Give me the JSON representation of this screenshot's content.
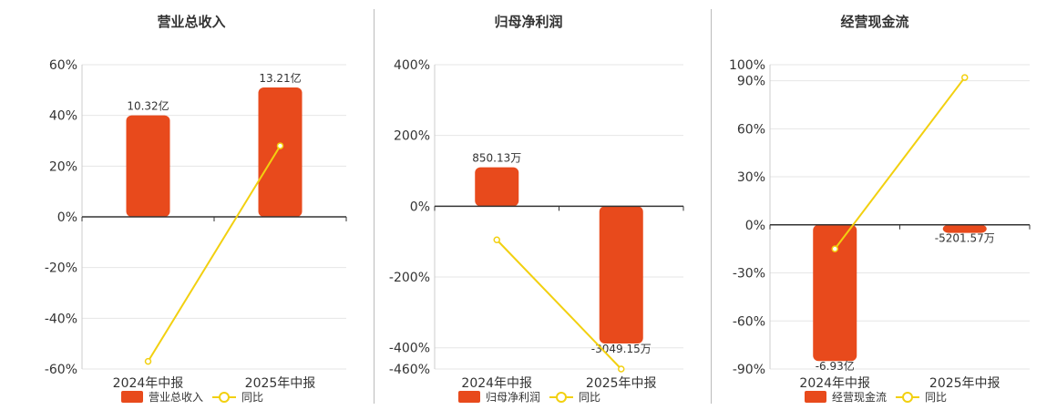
{
  "legend_yoy_label": "同比",
  "colors": {
    "bar": "#e84a1c",
    "line": "#f2d010",
    "axis": "#333333",
    "grid": "#e6e6e6",
    "text": "#333333"
  },
  "chart_data": [
    {
      "type": "bar",
      "title": "营业总收入",
      "categories": [
        "2024年中报",
        "2025年中报"
      ],
      "series": [
        {
          "name": "营业总收入",
          "type": "bar",
          "values": [
            null,
            null
          ],
          "labels": [
            "10.32亿",
            "13.21亿"
          ],
          "plot_pct": [
            40,
            51
          ]
        },
        {
          "name": "同比",
          "type": "line",
          "values": [
            -57,
            28
          ]
        }
      ],
      "ylim": [
        -60,
        60
      ],
      "yticks": [
        60,
        40,
        20,
        0,
        -20,
        -40,
        -60
      ],
      "ytick_labels": [
        "60%",
        "40%",
        "20%",
        "0%",
        "-20%",
        "-40%",
        "-60%"
      ],
      "grid": true,
      "legend": "bottom"
    },
    {
      "type": "bar",
      "title": "归母净利润",
      "categories": [
        "2024年中报",
        "2025年中报"
      ],
      "series": [
        {
          "name": "归母净利润",
          "type": "bar",
          "values": [
            null,
            null
          ],
          "labels": [
            "850.13万",
            "-3049.15万"
          ],
          "plot_pct": [
            110,
            -388
          ]
        },
        {
          "name": "同比",
          "type": "line",
          "values": [
            -95,
            -460
          ]
        }
      ],
      "ylim": [
        -460,
        400
      ],
      "yticks": [
        400,
        200,
        0,
        -200,
        -400,
        -460
      ],
      "ytick_labels": [
        "400%",
        "200%",
        "0%",
        "-200%",
        "-400%",
        "-460%"
      ],
      "grid": true,
      "legend": "bottom"
    },
    {
      "type": "bar",
      "title": "经营现金流",
      "categories": [
        "2024年中报",
        "2025年中报"
      ],
      "series": [
        {
          "name": "经营现金流",
          "type": "bar",
          "values": [
            null,
            null
          ],
          "labels": [
            "-6.93亿",
            "-5201.57万"
          ],
          "plot_pct": [
            -85,
            -5
          ]
        },
        {
          "name": "同比",
          "type": "line",
          "values": [
            -15,
            92
          ]
        }
      ],
      "ylim": [
        -90,
        100
      ],
      "yticks": [
        100,
        90,
        60,
        30,
        0,
        -30,
        -60,
        -90
      ],
      "ytick_labels": [
        "100%",
        "90%",
        "60%",
        "30%",
        "0%",
        "-30%",
        "-60%",
        "-90%"
      ],
      "grid": true,
      "legend": "bottom"
    }
  ]
}
